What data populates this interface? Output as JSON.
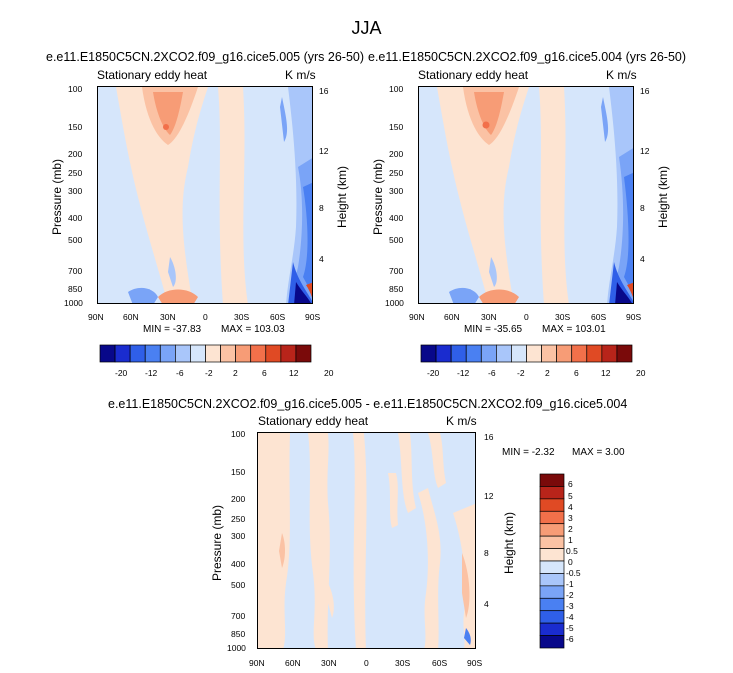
{
  "main_title": "JJA",
  "colors": {
    "palette": [
      "#08088a",
      "#1a2ccf",
      "#2f5fe8",
      "#4a80f2",
      "#7aa4f7",
      "#a9c6fa",
      "#d6e6fb",
      "#fde4d2",
      "#fbc2a4",
      "#f79c76",
      "#f2704a",
      "#e04a24",
      "#b8241a",
      "#7a0a0a"
    ],
    "background": "#d6e6fb"
  },
  "chart_data": [
    {
      "type": "heatmap",
      "title": "e.e11.E1850C5CN.2XCO2.f09_g16.cice5.005 (yrs 26-50)",
      "left_label": "Stationary eddy heat",
      "right_label": "K m/s",
      "ylabel": "Pressure (mb)",
      "ylabel_right": "Height (km)",
      "x_ticks": [
        "90N",
        "60N",
        "30N",
        "0",
        "30S",
        "60S",
        "90S"
      ],
      "y_ticks": [
        "100",
        "150",
        "200",
        "250",
        "300",
        "400",
        "500",
        "700",
        "850",
        "1000"
      ],
      "y_ticks_right": [
        "16",
        "12",
        "8",
        "4"
      ],
      "min_label": "MIN = -37.83",
      "max_label": "MAX = 103.03",
      "min": -37.83,
      "max": 103.03
    },
    {
      "type": "heatmap",
      "title": "e.e11.E1850C5CN.2XCO2.f09_g16.cice5.004 (yrs 26-50)",
      "left_label": "Stationary eddy heat",
      "right_label": "K m/s",
      "ylabel": "Pressure (mb)",
      "ylabel_right": "Height (km)",
      "x_ticks": [
        "90N",
        "60N",
        "30N",
        "0",
        "30S",
        "60S",
        "90S"
      ],
      "y_ticks": [
        "100",
        "150",
        "200",
        "250",
        "300",
        "400",
        "500",
        "700",
        "850",
        "1000"
      ],
      "y_ticks_right": [
        "16",
        "12",
        "8",
        "4"
      ],
      "min_label": "MIN = -35.65",
      "max_label": "MAX = 103.01",
      "min": -35.65,
      "max": 103.01
    },
    {
      "type": "heatmap",
      "title": "e.e11.E1850C5CN.2XCO2.f09_g16.cice5.005 - e.e11.E1850C5CN.2XCO2.f09_g16.cice5.004",
      "left_label": "Stationary eddy heat",
      "right_label": "K m/s",
      "ylabel": "Pressure (mb)",
      "ylabel_right": "Height (km)",
      "x_ticks": [
        "90N",
        "60N",
        "30N",
        "0",
        "30S",
        "60S",
        "90S"
      ],
      "y_ticks": [
        "100",
        "150",
        "200",
        "250",
        "300",
        "400",
        "500",
        "700",
        "850",
        "1000"
      ],
      "y_ticks_right": [
        "16",
        "12",
        "8",
        "4"
      ],
      "min_label": "MIN =  -2.32",
      "max_label": "MAX =   3.00",
      "min": -2.32,
      "max": 3.0
    }
  ],
  "colorbar_top": {
    "labels": [
      "-20",
      "-12",
      "-6",
      "-2",
      "2",
      "6",
      "12",
      "20"
    ]
  },
  "colorbar_diff": {
    "labels": [
      "6",
      "5",
      "4",
      "3",
      "2",
      "1",
      "0.5",
      "0",
      "-0.5",
      "-1",
      "-2",
      "-3",
      "-4",
      "-5",
      "-6"
    ]
  }
}
